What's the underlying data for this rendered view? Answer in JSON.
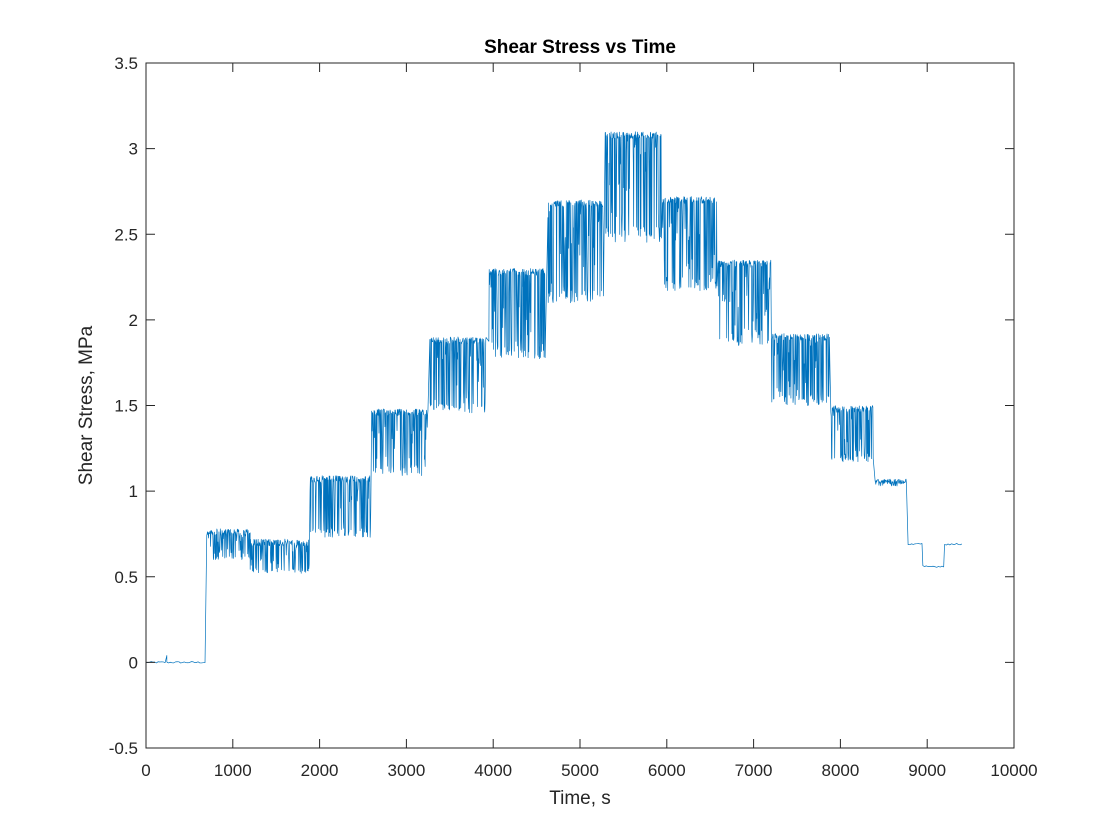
{
  "chart_data": {
    "type": "line",
    "title": "Shear Stress vs Time",
    "xlabel": "Time, s",
    "ylabel": "Shear Stress, MPa",
    "xlim": [
      0,
      10000
    ],
    "ylim": [
      -0.5,
      3.5
    ],
    "x_ticks": [
      0,
      1000,
      2000,
      3000,
      4000,
      5000,
      6000,
      7000,
      8000,
      9000,
      10000
    ],
    "x_tick_labels": [
      "0",
      "1000",
      "2000",
      "3000",
      "4000",
      "5000",
      "6000",
      "7000",
      "8000",
      "9000",
      "10000"
    ],
    "y_ticks": [
      -0.5,
      0,
      0.5,
      1,
      1.5,
      2,
      2.5,
      3,
      3.5
    ],
    "y_tick_labels": [
      "-0.5",
      "0",
      "0.5",
      "1",
      "1.5",
      "2",
      "2.5",
      "3",
      "3.5"
    ],
    "grid": false,
    "box": true,
    "line_color": "#0072BD",
    "series": [
      {
        "segments": [
          {
            "t_start": 0,
            "t_end": 680,
            "upper": 0.0,
            "lower": 0.0
          },
          {
            "t_start": 700,
            "t_end": 1200,
            "upper": 0.78,
            "lower": 0.6
          },
          {
            "t_start": 1200,
            "t_end": 1880,
            "upper": 0.72,
            "lower": 0.52
          },
          {
            "t_start": 1890,
            "t_end": 2590,
            "upper": 1.09,
            "lower": 0.73
          },
          {
            "t_start": 2600,
            "t_end": 3250,
            "upper": 1.48,
            "lower": 1.09
          },
          {
            "t_start": 3270,
            "t_end": 3920,
            "upper": 1.9,
            "lower": 1.45
          },
          {
            "t_start": 3950,
            "t_end": 4600,
            "upper": 2.3,
            "lower": 1.77
          },
          {
            "t_start": 4630,
            "t_end": 5270,
            "upper": 2.7,
            "lower": 2.1
          },
          {
            "t_start": 5290,
            "t_end": 5940,
            "upper": 3.1,
            "lower": 2.45
          },
          {
            "t_start": 5950,
            "t_end": 6580,
            "upper": 2.72,
            "lower": 2.17
          },
          {
            "t_start": 6590,
            "t_end": 7200,
            "upper": 2.35,
            "lower": 1.85
          },
          {
            "t_start": 7210,
            "t_end": 7880,
            "upper": 1.92,
            "lower": 1.5
          },
          {
            "t_start": 7890,
            "t_end": 8380,
            "upper": 1.5,
            "lower": 1.17
          },
          {
            "t_start": 8400,
            "t_end": 8760,
            "upper": 1.07,
            "lower": 1.05
          },
          {
            "t_start": 8780,
            "t_end": 8950,
            "upper": 0.69,
            "lower": 0.69
          },
          {
            "t_start": 8950,
            "t_end": 9200,
            "upper": 0.56,
            "lower": 0.56
          },
          {
            "t_start": 9200,
            "t_end": 9400,
            "upper": 0.69,
            "lower": 0.69
          }
        ]
      }
    ]
  }
}
